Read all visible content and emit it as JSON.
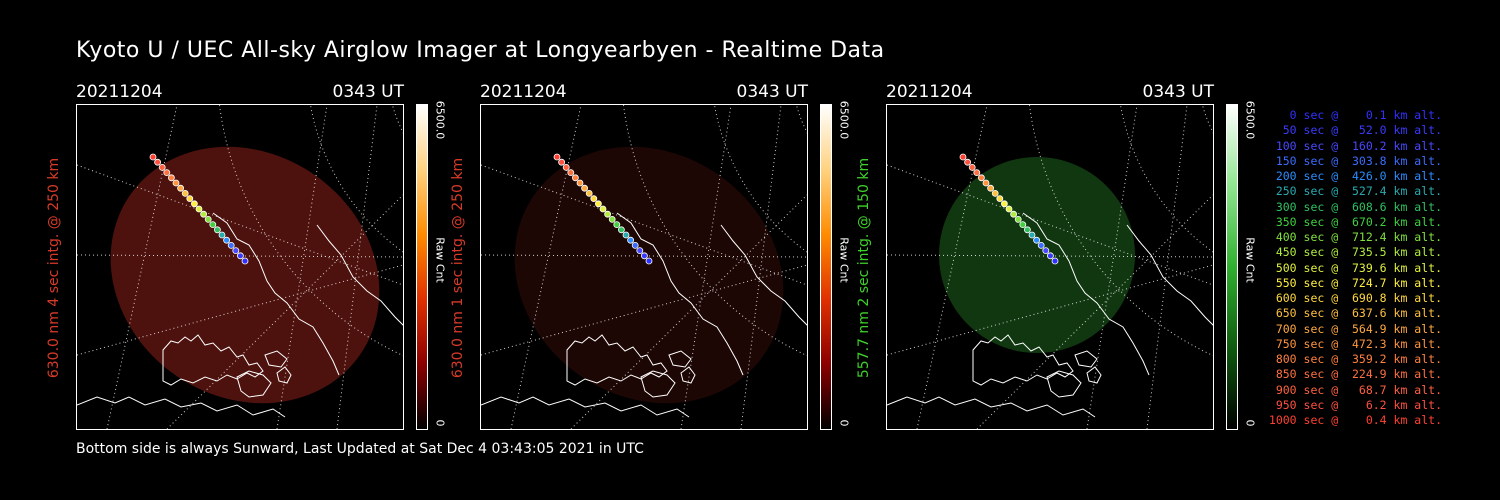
{
  "title": "Kyoto U / UEC All-sky Airglow Imager at Longyearbyen - Realtime Data",
  "footer": "Bottom side is always Sunward, Last Updated at Sat Dec  4 03:43:05 2021 in UTC",
  "panels": [
    {
      "date": "20211204",
      "time": "0343 UT",
      "side_label": "630.0 nm 4 sec intg. @ 250 km",
      "label_color": "#d83a2a",
      "glow_color": "#5a1510",
      "glow_opacity": 0.85,
      "cbar_max": "6500.0",
      "cbar_unit": "Raw Cnt",
      "cbar_min": "0",
      "cbar_colors": [
        "#000000",
        "#8b0000",
        "#e03000",
        "#ff8c00",
        "#ffd27f",
        "#ffffff"
      ]
    },
    {
      "date": "20211204",
      "time": "0343 UT",
      "side_label": "630.0 nm 1 sec intg. @ 250 km",
      "label_color": "#d83a2a",
      "glow_color": "#2a0a07",
      "glow_opacity": 0.7,
      "cbar_max": "6500.0",
      "cbar_unit": "Raw Cnt",
      "cbar_min": "0",
      "cbar_colors": [
        "#000000",
        "#8b0000",
        "#e03000",
        "#ff8c00",
        "#ffd27f",
        "#ffffff"
      ]
    },
    {
      "date": "20211204",
      "time": "0343 UT",
      "side_label": "557.7 nm 2 sec intg. @ 150 km",
      "label_color": "#3ed12a",
      "glow_color": "#123d12",
      "glow_opacity": 0.9,
      "cbar_max": "6500.0",
      "cbar_unit": "Raw Cnt",
      "cbar_min": "0",
      "cbar_colors": [
        "#000000",
        "#0f5a0f",
        "#2fb02f",
        "#8fe58f",
        "#ffffff"
      ]
    }
  ],
  "legend": [
    {
      "text": "0 sec @    0.1 km alt.",
      "color": "#3030ff"
    },
    {
      "text": "50 sec @   52.0 km alt.",
      "color": "#3a3aff"
    },
    {
      "text": "100 sec @  160.2 km alt.",
      "color": "#4848ff"
    },
    {
      "text": "150 sec @  303.8 km alt.",
      "color": "#3c6cff"
    },
    {
      "text": "200 sec @  426.0 km alt.",
      "color": "#2a8cff"
    },
    {
      "text": "250 sec @  527.4 km alt.",
      "color": "#2aaab0"
    },
    {
      "text": "300 sec @  608.6 km alt.",
      "color": "#30c060"
    },
    {
      "text": "350 sec @  670.2 km alt.",
      "color": "#40d040"
    },
    {
      "text": "400 sec @  712.4 km alt.",
      "color": "#80e040"
    },
    {
      "text": "450 sec @  735.5 km alt.",
      "color": "#b0ec40"
    },
    {
      "text": "500 sec @  739.6 km alt.",
      "color": "#e0f040"
    },
    {
      "text": "550 sec @  724.7 km alt.",
      "color": "#fff040"
    },
    {
      "text": "600 sec @  690.8 km alt.",
      "color": "#ffd840"
    },
    {
      "text": "650 sec @  637.6 km alt.",
      "color": "#ffc040"
    },
    {
      "text": "700 sec @  564.9 km alt.",
      "color": "#ffa840"
    },
    {
      "text": "750 sec @  472.3 km alt.",
      "color": "#ff9440"
    },
    {
      "text": "800 sec @  359.2 km alt.",
      "color": "#ff8040"
    },
    {
      "text": "850 sec @  224.9 km alt.",
      "color": "#ff7040"
    },
    {
      "text": "900 sec @   68.7 km alt.",
      "color": "#ff6040"
    },
    {
      "text": "950 sec @    6.2 km alt.",
      "color": "#ff5040"
    },
    {
      "text": "1000 sec @    0.4 km alt.",
      "color": "#ff4030"
    }
  ]
}
